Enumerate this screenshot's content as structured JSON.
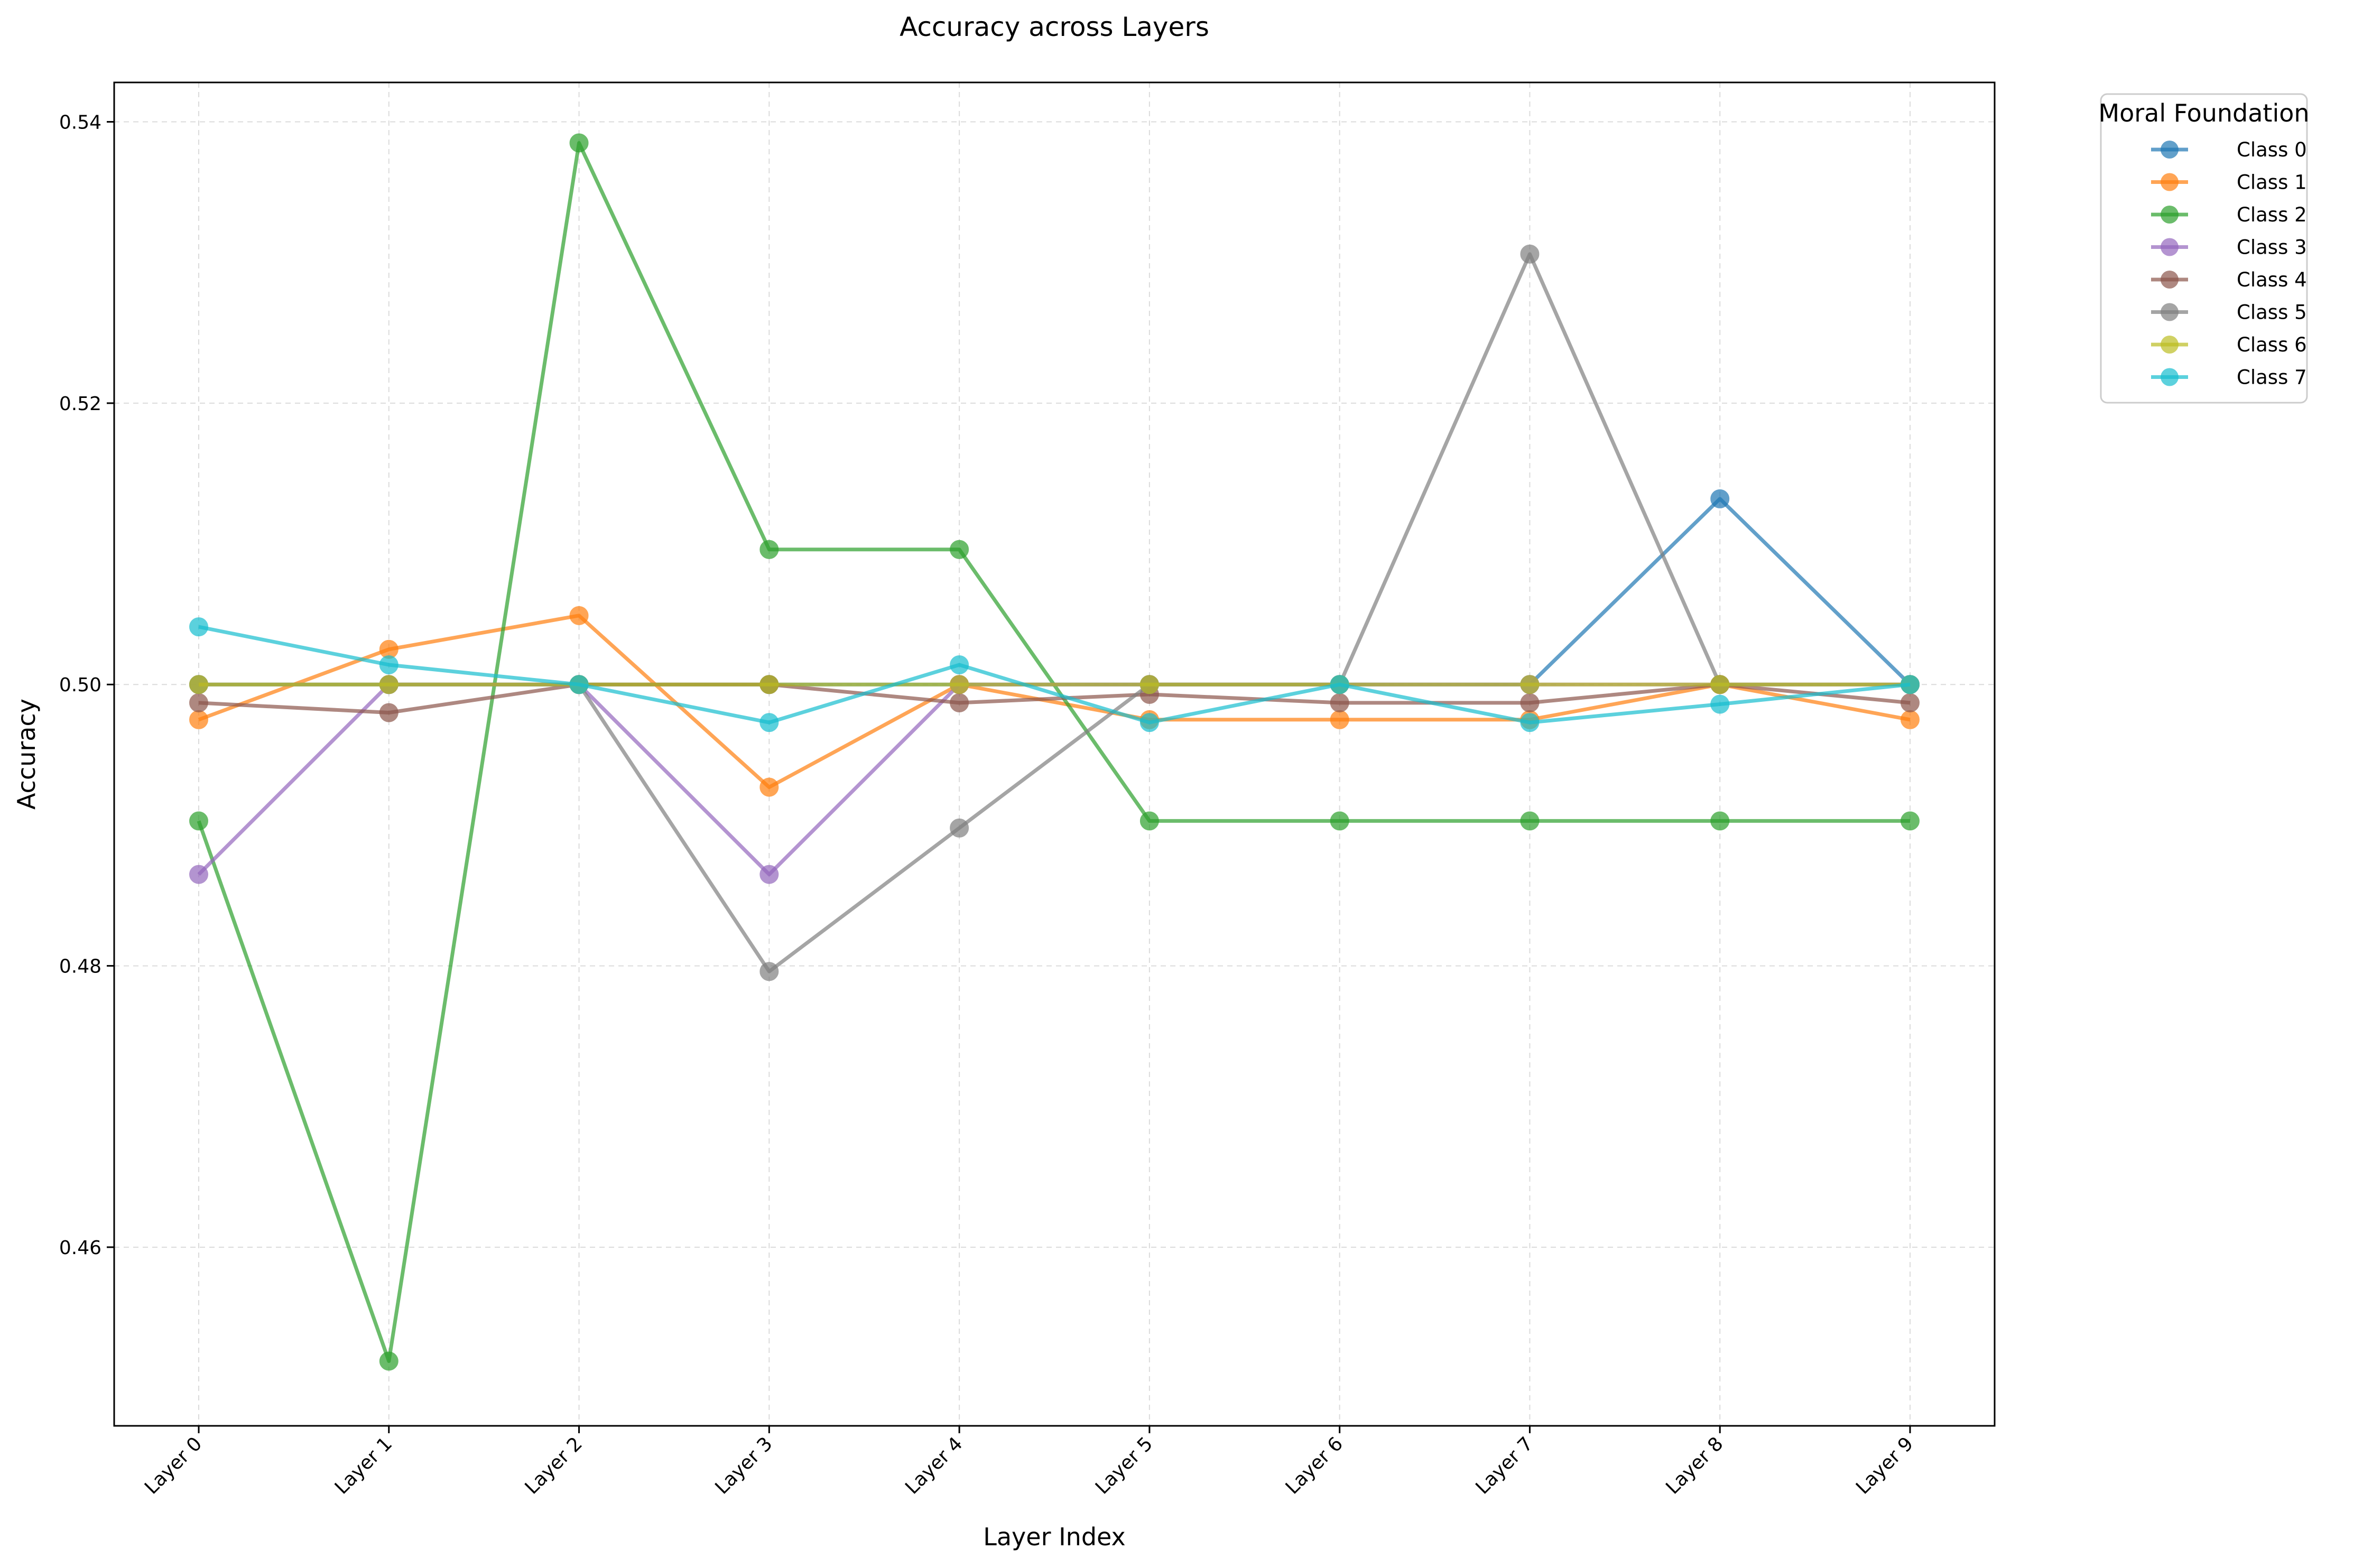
{
  "chart_data": {
    "type": "line",
    "title": "Accuracy across Layers",
    "xlabel": "Layer Index",
    "ylabel": "Accuracy",
    "categories": [
      "Layer 0",
      "Layer 1",
      "Layer 2",
      "Layer 3",
      "Layer 4",
      "Layer 5",
      "Layer 6",
      "Layer 7",
      "Layer 8",
      "Layer 9"
    ],
    "ylim": [
      0.4473,
      0.5428
    ],
    "yticks": [
      0.46,
      0.48,
      0.5,
      0.52,
      0.54
    ],
    "ytick_labels": [
      "0.46",
      "0.48",
      "0.50",
      "0.52",
      "0.54"
    ],
    "grid": true,
    "legend": {
      "title": "Moral Foundation",
      "placement": "outside-top-right"
    },
    "series": [
      {
        "name": "Class 0",
        "color": "#1f77b4",
        "values": [
          0.5,
          0.5,
          0.5,
          0.5,
          0.5,
          0.5,
          0.5,
          0.5,
          0.5132,
          0.5
        ]
      },
      {
        "name": "Class 1",
        "color": "#ff7f0e",
        "values": [
          0.4975,
          0.5025,
          0.5049,
          0.4927,
          0.5,
          0.4975,
          0.4975,
          0.4975,
          0.5,
          0.4975
        ]
      },
      {
        "name": "Class 2",
        "color": "#2ca02c",
        "values": [
          0.4903,
          0.4519,
          0.5385,
          0.5096,
          0.5096,
          0.4903,
          0.4903,
          0.4903,
          0.4903,
          0.4903
        ]
      },
      {
        "name": "Class 3",
        "color": "#9467bd",
        "values": [
          0.4865,
          0.5,
          0.5,
          0.4865,
          0.5,
          0.5,
          0.5,
          0.5,
          0.5,
          0.5
        ]
      },
      {
        "name": "Class 4",
        "color": "#8c564b",
        "values": [
          0.4987,
          0.498,
          0.5,
          0.5,
          0.4987,
          0.4993,
          0.4987,
          0.4987,
          0.5,
          0.4987
        ]
      },
      {
        "name": "Class 5",
        "color": "#7f7f7f",
        "values": [
          0.5,
          0.5,
          0.5,
          0.4796,
          0.4898,
          0.5,
          0.5,
          0.5306,
          0.5,
          0.5
        ]
      },
      {
        "name": "Class 6",
        "color": "#bcbd22",
        "values": [
          0.5,
          0.5,
          0.5,
          0.5,
          0.5,
          0.5,
          0.5,
          0.5,
          0.5,
          0.5
        ]
      },
      {
        "name": "Class 7",
        "color": "#17becf",
        "values": [
          0.5041,
          0.5014,
          0.5,
          0.4973,
          0.5014,
          0.4973,
          0.5,
          0.4973,
          0.4986,
          0.5
        ]
      }
    ]
  }
}
